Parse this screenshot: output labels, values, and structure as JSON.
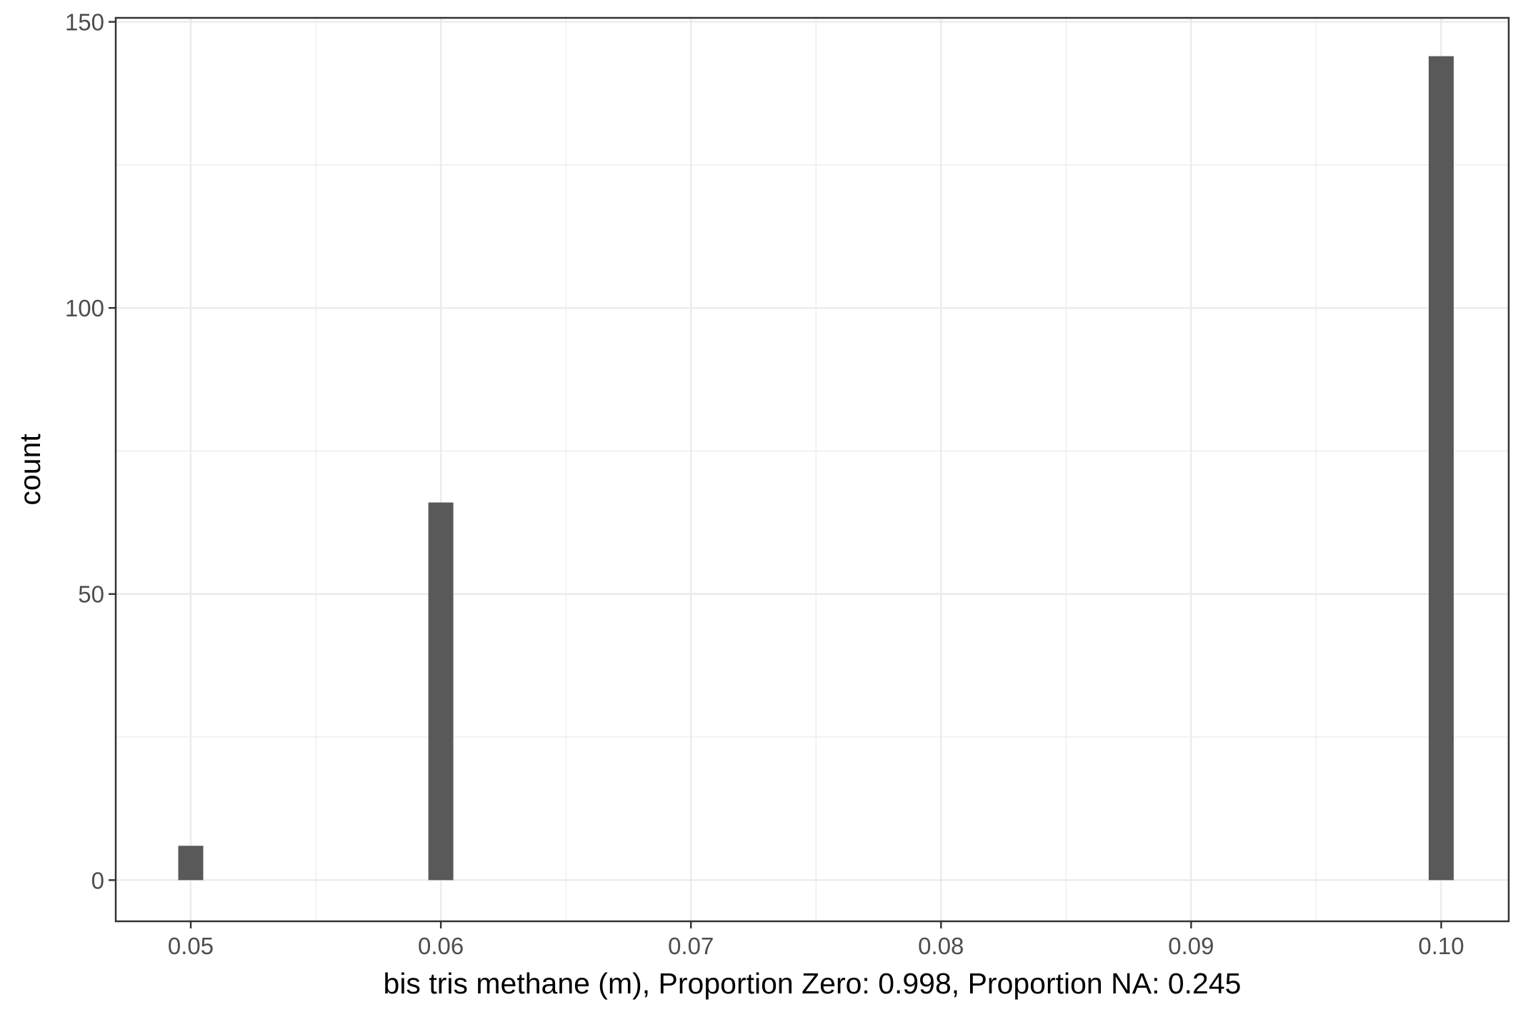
{
  "chart_data": {
    "type": "bar",
    "xlabel": "bis tris methane (m), Proportion Zero: 0.998, Proportion NA: 0.245",
    "ylabel": "count",
    "x": [
      0.05,
      0.06,
      0.1
    ],
    "values": [
      6,
      66,
      144
    ],
    "xlim": [
      0.047,
      0.1027
    ],
    "ylim": [
      -7.2,
      150.7
    ],
    "x_ticks": [
      0.05,
      0.06,
      0.07,
      0.08,
      0.09,
      0.1
    ],
    "x_tick_labels": [
      "0.05",
      "0.06",
      "0.07",
      "0.08",
      "0.09",
      "0.10"
    ],
    "y_ticks": [
      0,
      50,
      100,
      150
    ],
    "y_tick_labels": [
      "0",
      "50",
      "100",
      "150"
    ],
    "bin_width": 0.001,
    "grid": true,
    "colors": {
      "bar": "#595959",
      "grid": "#ebebeb",
      "panel_border": "#333333",
      "background": "#ffffff"
    }
  }
}
